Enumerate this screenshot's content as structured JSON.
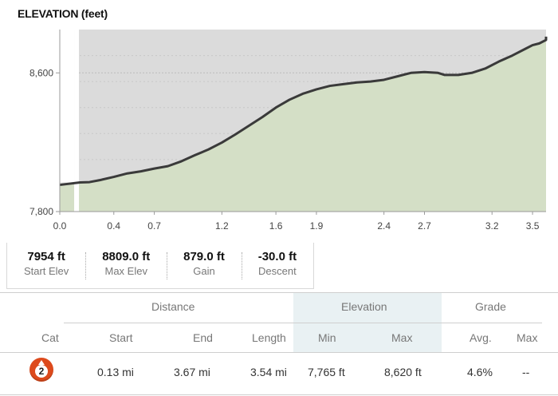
{
  "chart_data": {
    "type": "area",
    "title": "ELEVATION (feet)",
    "xlim": [
      0.0,
      3.6
    ],
    "ylim": [
      7800,
      8850
    ],
    "xticks": [
      "0.0",
      "0.4",
      "0.7",
      "1.2",
      "1.6",
      "1.9",
      "2.4",
      "2.7",
      "3.2",
      "3.5"
    ],
    "xtick_values": [
      0.0,
      0.4,
      0.7,
      1.2,
      1.6,
      1.9,
      2.4,
      2.7,
      3.2,
      3.5
    ],
    "yticks": [
      "7,800",
      "8,600"
    ],
    "ytick_values": [
      7800,
      8600
    ],
    "grid": true,
    "segment_range": [
      0.13,
      3.67
    ],
    "series": [
      {
        "x": [
          0.0,
          0.15,
          0.22,
          0.3,
          0.4,
          0.5,
          0.6,
          0.7,
          0.8,
          0.9,
          1.0,
          1.1,
          1.2,
          1.3,
          1.4,
          1.5,
          1.6,
          1.7,
          1.8,
          1.9,
          2.0,
          2.1,
          2.2,
          2.3,
          2.4,
          2.5,
          2.6,
          2.7,
          2.8,
          2.85,
          2.95,
          3.05,
          3.15,
          3.25,
          3.35,
          3.45,
          3.5,
          3.55,
          3.6,
          3.67
        ],
        "y": [
          7954,
          7968,
          7970,
          7982,
          8000,
          8020,
          8032,
          8048,
          8062,
          8090,
          8125,
          8158,
          8198,
          8245,
          8295,
          8345,
          8400,
          8445,
          8480,
          8505,
          8525,
          8535,
          8545,
          8550,
          8560,
          8580,
          8600,
          8605,
          8600,
          8588,
          8588,
          8600,
          8625,
          8665,
          8700,
          8740,
          8760,
          8770,
          8790,
          8809
        ]
      }
    ]
  },
  "stats": [
    {
      "value": "7954 ft",
      "label": "Start Elev"
    },
    {
      "value": "8809.0 ft",
      "label": "Max Elev"
    },
    {
      "value": "879.0 ft",
      "label": "Gain"
    },
    {
      "value": "-30.0 ft",
      "label": "Descent"
    }
  ],
  "table": {
    "group_headers": {
      "distance": "Distance",
      "elevation": "Elevation",
      "grade": "Grade"
    },
    "columns": {
      "cat": "Cat",
      "start": "Start",
      "end": "End",
      "length": "Length",
      "min": "Min",
      "max": "Max",
      "avg": "Avg.",
      "grade_max": "Max"
    },
    "row": {
      "cat": "2",
      "start": "0.13 mi",
      "end": "3.67 mi",
      "length": "3.54 mi",
      "min": "7,765 ft",
      "max": "8,620 ft",
      "avg": "4.6%",
      "grade_max": "--"
    },
    "cat_badge_color": "#dd4a1c"
  },
  "colors": {
    "area_fill": "#d4dfc6",
    "plot_bg": "#dbdbdb",
    "line": "#3a3a3a",
    "highlight_col": "#e9f1f3"
  }
}
